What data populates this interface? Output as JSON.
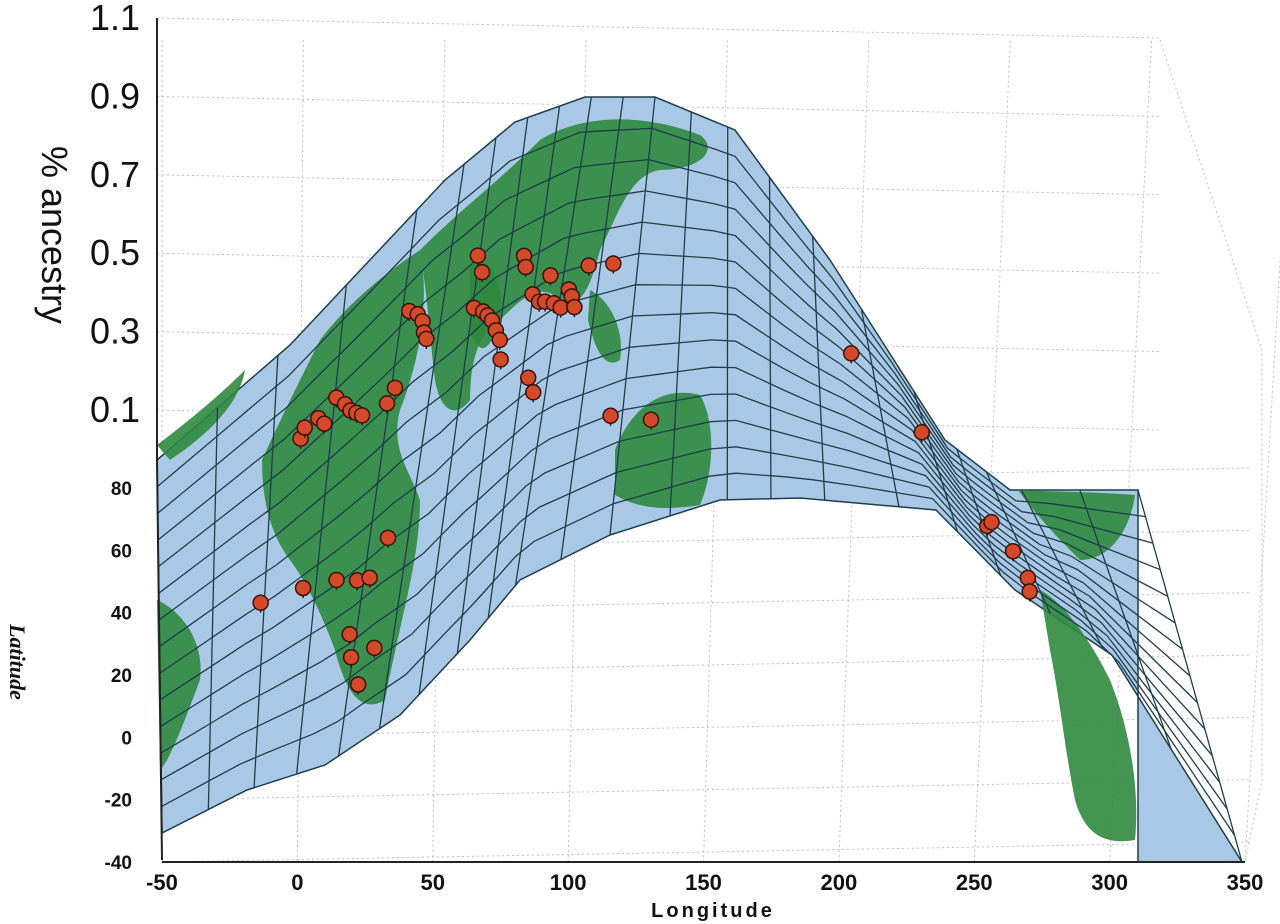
{
  "chart_data": {
    "type": "scatter",
    "projection": "3d-surface-over-world-map",
    "title": "",
    "xlabel": "Longitude",
    "ylabel": "Latitude",
    "zlabel": "% ancestry",
    "xlim": [
      -50,
      350
    ],
    "ylim": [
      -40,
      80
    ],
    "zlim": [
      0.0,
      1.1
    ],
    "x_ticks": [
      "-50",
      "0",
      "50",
      "100",
      "150",
      "200",
      "250",
      "300",
      "350"
    ],
    "y_ticks": [
      "80",
      "60",
      "40",
      "20",
      "0",
      "-20",
      "-40"
    ],
    "z_ticks": [
      "1.1",
      "0.9",
      "0.7",
      "0.5",
      "0.3",
      "0.1"
    ],
    "grid": true,
    "colors": {
      "surface": "#a9c8e6",
      "land": "#2f8a3e",
      "mesh": "#1f3d4a",
      "points": "#d24a2a",
      "grid": "#b8c0d8"
    },
    "points": [
      {
        "lon": -5,
        "lat": 50,
        "z": 0.2
      },
      {
        "lon": -4,
        "lat": 52,
        "z": 0.15
      },
      {
        "lon": 0,
        "lat": 51,
        "z": 0.14
      },
      {
        "lon": 2,
        "lat": 48,
        "z": 0.17
      },
      {
        "lon": 5,
        "lat": 52,
        "z": 0.13
      },
      {
        "lon": 8,
        "lat": 48,
        "z": 0.17
      },
      {
        "lon": 10,
        "lat": 45,
        "z": 0.21
      },
      {
        "lon": 12,
        "lat": 43,
        "z": 0.18
      },
      {
        "lon": 14,
        "lat": 41,
        "z": 0.23
      },
      {
        "lon": 25,
        "lat": 56,
        "z": 0.3
      },
      {
        "lon": 28,
        "lat": 53,
        "z": 0.28
      },
      {
        "lon": 30,
        "lat": 50,
        "z": 0.32
      },
      {
        "lon": 32,
        "lat": 47,
        "z": 0.3
      },
      {
        "lon": 34,
        "lat": 45,
        "z": 0.37
      },
      {
        "lon": 24,
        "lat": 40,
        "z": 0.35
      },
      {
        "lon": 22,
        "lat": 38,
        "z": 0.33
      },
      {
        "lon": 58,
        "lat": 55,
        "z": 0.38
      },
      {
        "lon": 62,
        "lat": 50,
        "z": 0.36
      },
      {
        "lon": 60,
        "lat": 43,
        "z": 0.33
      },
      {
        "lon": 66,
        "lat": 40,
        "z": 0.42
      },
      {
        "lon": 69,
        "lat": 38,
        "z": 0.45
      },
      {
        "lon": 72,
        "lat": 36,
        "z": 0.47
      },
      {
        "lon": 75,
        "lat": 33,
        "z": 0.5
      },
      {
        "lon": 78,
        "lat": 30,
        "z": 0.55
      },
      {
        "lon": 80,
        "lat": 25,
        "z": 0.65
      },
      {
        "lon": 86,
        "lat": 47,
        "z": 0.6
      },
      {
        "lon": 88,
        "lat": 44,
        "z": 0.62
      },
      {
        "lon": 95,
        "lat": 36,
        "z": 0.66
      },
      {
        "lon": 100,
        "lat": 33,
        "z": 0.7
      },
      {
        "lon": 104,
        "lat": 32,
        "z": 0.7
      },
      {
        "lon": 105,
        "lat": 38,
        "z": 0.72
      },
      {
        "lon": 110,
        "lat": 30,
        "z": 0.75
      },
      {
        "lon": 115,
        "lat": 28,
        "z": 0.78
      },
      {
        "lon": 118,
        "lat": 32,
        "z": 0.8
      },
      {
        "lon": 120,
        "lat": 30,
        "z": 0.85
      },
      {
        "lon": 122,
        "lat": 27,
        "z": 0.8
      },
      {
        "lon": 126,
        "lat": 37,
        "z": 0.76
      },
      {
        "lon": 138,
        "lat": 36,
        "z": 0.75
      },
      {
        "lon": 100,
        "lat": 15,
        "z": 0.58
      },
      {
        "lon": 105,
        "lat": 10,
        "z": 0.55
      },
      {
        "lon": 145,
        "lat": -6,
        "z": 0.42
      },
      {
        "lon": 160,
        "lat": -10,
        "z": 0.45
      },
      {
        "lon": -15,
        "lat": 12,
        "z": 0.05
      },
      {
        "lon": 0,
        "lat": 8,
        "z": 0.05
      },
      {
        "lon": 12,
        "lat": 4,
        "z": 0.04
      },
      {
        "lon": 20,
        "lat": 0,
        "z": 0.04
      },
      {
        "lon": 25,
        "lat": -2,
        "z": 0.04
      },
      {
        "lon": 30,
        "lat": 4,
        "z": 0.06
      },
      {
        "lon": 20,
        "lat": -12,
        "z": 0.05
      },
      {
        "lon": 22,
        "lat": -18,
        "z": 0.04
      },
      {
        "lon": 27,
        "lat": -26,
        "z": 0.04
      },
      {
        "lon": 32,
        "lat": -20,
        "z": 0.04
      },
      {
        "lon": 234,
        "lat": 40,
        "z": 0.1
      },
      {
        "lon": 256,
        "lat": 35,
        "z": 0.1
      },
      {
        "lon": 280,
        "lat": 12,
        "z": 0.08
      },
      {
        "lon": 284,
        "lat": 22,
        "z": 0.09
      },
      {
        "lon": 290,
        "lat": 5,
        "z": 0.06
      },
      {
        "lon": 292,
        "lat": -15,
        "z": 0.05
      },
      {
        "lon": 290,
        "lat": -30,
        "z": 0.04
      }
    ]
  }
}
